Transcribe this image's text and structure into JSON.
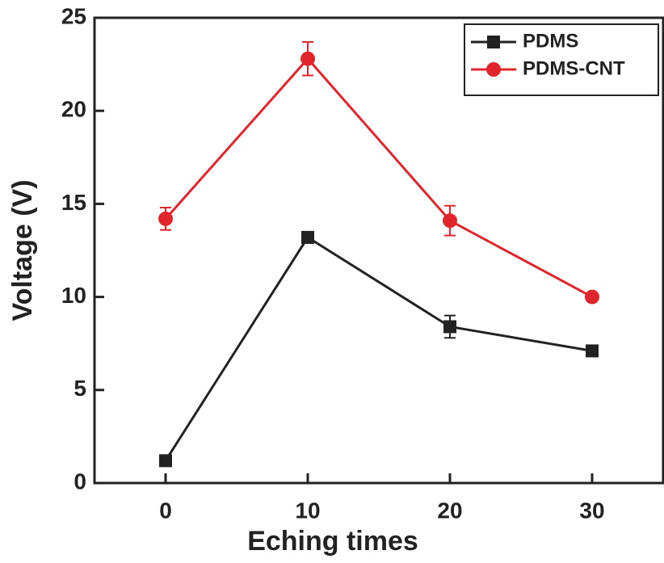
{
  "chart_data": {
    "type": "line",
    "x_label": "Eching times",
    "y_label": "Voltage (V)",
    "x": [
      0,
      10,
      20,
      30
    ],
    "series": [
      {
        "name": "PDMS",
        "color": "#222222",
        "marker": "square",
        "values": [
          1.2,
          13.2,
          8.4,
          7.1
        ],
        "errors": [
          0.2,
          0.3,
          0.6,
          0.2
        ]
      },
      {
        "name": "PDMS-CNT",
        "color": "#e0262c",
        "marker": "circle",
        "values": [
          14.2,
          22.8,
          14.1,
          10.0
        ],
        "errors": [
          0.6,
          0.9,
          0.8,
          0.2
        ]
      }
    ],
    "xlim": [
      -5,
      35
    ],
    "ylim": [
      0,
      25
    ],
    "xticks": [
      0,
      10,
      20,
      30
    ],
    "yticks": [
      0,
      5,
      10,
      15,
      20,
      25
    ],
    "legend": "upper right",
    "grid": false
  }
}
